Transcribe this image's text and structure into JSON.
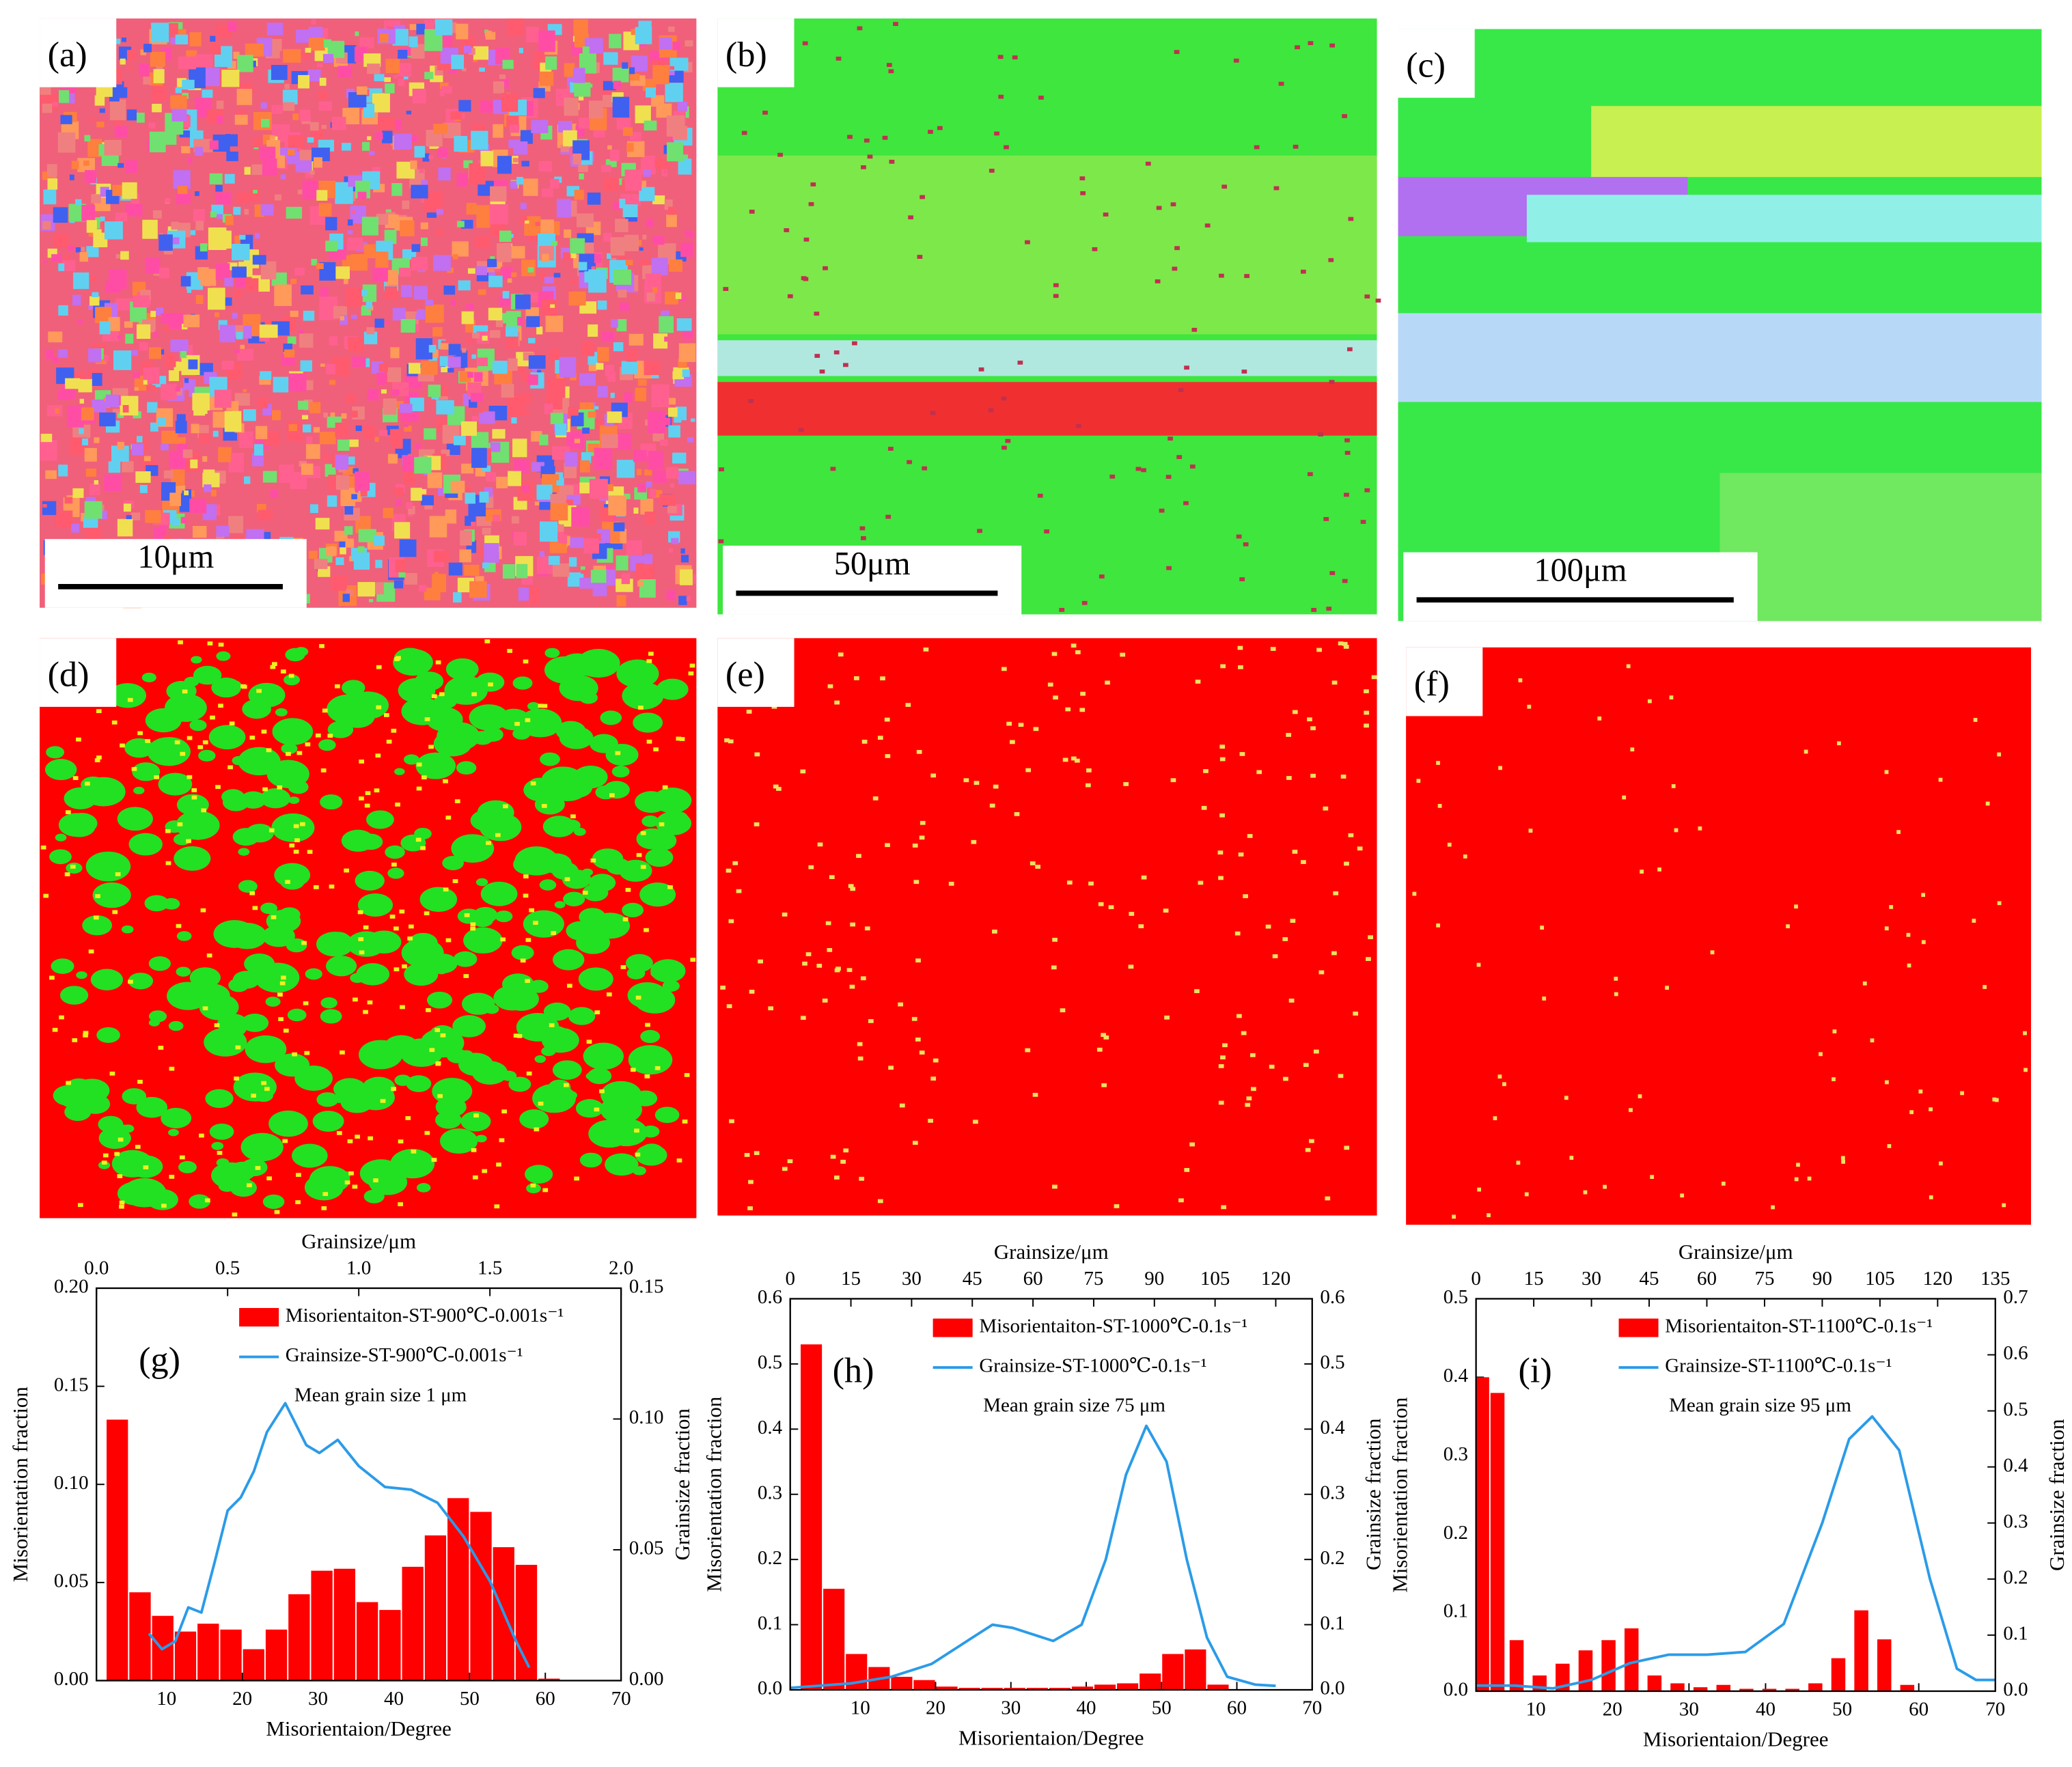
{
  "panels": [
    {
      "label": "(a)",
      "scale_bar": "10μm"
    },
    {
      "label": "(b)",
      "scale_bar": "50μm"
    },
    {
      "label": "(c)",
      "scale_bar": "100μm"
    },
    {
      "label": "(d)"
    },
    {
      "label": "(e)"
    },
    {
      "label": "(f)"
    }
  ],
  "chart_data": [
    {
      "type": "bar",
      "panel_label": "(g)",
      "xlabel": "Misorientaion/Degree",
      "ylabel": "Misorientation fraction",
      "x2label": "Grainsize/μm",
      "y2label": "Grainsize fraction",
      "annotation": "Mean grain size 1 μm",
      "x": [
        3.5,
        6.5,
        9.5,
        12.5,
        15.5,
        18.5,
        21.5,
        24.5,
        27.5,
        30.5,
        33.5,
        36.5,
        39.5,
        42.5,
        45.5,
        48.5,
        51.5,
        54.5,
        57.5,
        60.5
      ],
      "series": [
        {
          "name": "Misorientaiton-ST-900℃-0.001s⁻¹",
          "color": "#ff0000",
          "values": [
            0.133,
            0.045,
            0.033,
            0.025,
            0.029,
            0.026,
            0.016,
            0.026,
            0.044,
            0.056,
            0.057,
            0.04,
            0.036,
            0.058,
            0.074,
            0.093,
            0.086,
            0.068,
            0.059,
            0.001
          ]
        },
        {
          "name": "Grainsize-ST-900℃-0.001s⁻¹",
          "color": "#2b9be8",
          "axis": "y2",
          "x": [
            0.2,
            0.25,
            0.3,
            0.35,
            0.4,
            0.45,
            0.5,
            0.55,
            0.6,
            0.65,
            0.72,
            0.8,
            0.85,
            0.92,
            1.0,
            1.1,
            1.2,
            1.3,
            1.4,
            1.5,
            1.6,
            1.65
          ],
          "values": [
            0.018,
            0.012,
            0.015,
            0.028,
            0.026,
            0.045,
            0.065,
            0.07,
            0.08,
            0.095,
            0.106,
            0.09,
            0.087,
            0.092,
            0.082,
            0.074,
            0.073,
            0.068,
            0.055,
            0.038,
            0.015,
            0.005
          ]
        }
      ],
      "xlim": [
        0.75,
        70
      ],
      "xticks": [
        10,
        20,
        30,
        40,
        50,
        60,
        70
      ],
      "x2lim": [
        0,
        2
      ],
      "x2ticks": [
        {
          "value": 0,
          "label": "0.0"
        },
        {
          "value": 0.5,
          "label": "0.5"
        },
        {
          "value": 1,
          "label": "1.0"
        },
        {
          "value": 1.5,
          "label": "1.5"
        },
        {
          "value": 2,
          "label": "2.0"
        }
      ],
      "ylim": [
        0,
        0.2
      ],
      "yticks": [
        {
          "value": 0,
          "label": "0.00"
        },
        {
          "value": 0.05,
          "label": "0.05"
        },
        {
          "value": 0.1,
          "label": "0.10"
        },
        {
          "value": 0.15,
          "label": "0.15"
        },
        {
          "value": 0.2,
          "label": "0.20"
        }
      ],
      "y2lim": [
        0,
        0.15
      ],
      "y2ticks": [
        {
          "value": 0,
          "label": "0.00"
        },
        {
          "value": 0.05,
          "label": "0.05"
        },
        {
          "value": 0.1,
          "label": "0.10"
        },
        {
          "value": 0.15,
          "label": "0.15"
        }
      ]
    },
    {
      "type": "bar",
      "panel_label": "(h)",
      "xlabel": "Misorientaion/Degree",
      "ylabel": "Misorientation fraction",
      "x2label": "Grainsize/μm",
      "y2label": "Grainsize fraction",
      "annotation": "Mean grain size 75 μm",
      "x": [
        3.5,
        6.5,
        9.5,
        12.5,
        15.5,
        18.5,
        21.5,
        24.5,
        27.5,
        30.5,
        33.5,
        36.5,
        39.5,
        42.5,
        45.5,
        48.5,
        51.5,
        54.5,
        57.5
      ],
      "series": [
        {
          "name": "Misorientaiton-ST-1000℃-0.1s⁻¹",
          "color": "#ff0000",
          "values": [
            0.53,
            0.155,
            0.055,
            0.035,
            0.02,
            0.015,
            0.005,
            0.003,
            0.003,
            0.003,
            0.003,
            0.003,
            0.005,
            0.008,
            0.01,
            0.025,
            0.055,
            0.062,
            0.008
          ]
        },
        {
          "name": "Grainsize-ST-1000℃-0.1s⁻¹",
          "color": "#2b9be8",
          "axis": "y2",
          "x": [
            0,
            15,
            25,
            35,
            45,
            50,
            55,
            65,
            72,
            78,
            83,
            88,
            93,
            98,
            103,
            108,
            115,
            120
          ],
          "values": [
            0.003,
            0.01,
            0.02,
            0.04,
            0.08,
            0.1,
            0.095,
            0.075,
            0.1,
            0.2,
            0.33,
            0.405,
            0.35,
            0.2,
            0.08,
            0.02,
            0.008,
            0.006
          ]
        }
      ],
      "xlim": [
        0.7,
        70
      ],
      "xticks": [
        10,
        20,
        30,
        40,
        50,
        60,
        70
      ],
      "x2lim": [
        0,
        129
      ],
      "x2ticks": [
        0,
        15,
        30,
        45,
        60,
        75,
        90,
        105,
        120
      ],
      "ylim": [
        0,
        0.6
      ],
      "yticks": [
        {
          "value": 0,
          "label": "0.0"
        },
        0.1,
        0.2,
        0.3,
        0.4,
        0.5,
        0.6
      ],
      "y2lim": [
        0,
        0.6
      ],
      "y2ticks": [
        {
          "value": 0,
          "label": "0.0"
        },
        0.1,
        0.2,
        0.3,
        0.4,
        0.5,
        0.6
      ]
    },
    {
      "type": "bar",
      "panel_label": "(i)",
      "xlabel": "Misorientaion/Degree",
      "ylabel": "Misorientation fraction",
      "x2label": "Grainsize/μm",
      "y2label": "Grainsize fraction",
      "annotation": "Mean grain size 95 μm",
      "x": [
        3,
        5,
        7.5,
        10.5,
        13.5,
        16.5,
        19.5,
        22.5,
        25.5,
        28.5,
        31.5,
        34.5,
        37.5,
        40.5,
        43.5,
        46.5,
        49.5,
        52.5,
        55.5,
        58.5
      ],
      "series": [
        {
          "name": "Misorientaiton-ST-1100℃-0.1s⁻¹",
          "color": "#ff0000",
          "values": [
            0.4,
            0.38,
            0.065,
            0.02,
            0.035,
            0.052,
            0.065,
            0.08,
            0.02,
            0.01,
            0.005,
            0.008,
            0.003,
            0.003,
            0.003,
            0.01,
            0.042,
            0.103,
            0.066,
            0.008
          ]
        },
        {
          "name": "Grainsize-ST-1100℃-0.1s⁻¹",
          "color": "#2b9be8",
          "axis": "y2",
          "x": [
            0,
            10,
            20,
            30,
            40,
            50,
            60,
            70,
            80,
            90,
            97,
            103,
            110,
            118,
            125,
            130,
            135
          ],
          "values": [
            0.01,
            0.01,
            0.005,
            0.02,
            0.05,
            0.065,
            0.065,
            0.07,
            0.12,
            0.3,
            0.45,
            0.49,
            0.43,
            0.2,
            0.04,
            0.02,
            0.02
          ]
        }
      ],
      "xlim": [
        2.2,
        70
      ],
      "xticks": [
        10,
        20,
        30,
        40,
        50,
        60,
        70
      ],
      "x2lim": [
        0,
        135
      ],
      "x2ticks": [
        0,
        15,
        30,
        45,
        60,
        75,
        90,
        105,
        120,
        135
      ],
      "ylim": [
        0,
        0.5
      ],
      "yticks": [
        {
          "value": 0,
          "label": "0.0"
        },
        0.1,
        0.2,
        0.3,
        0.4,
        0.5
      ],
      "y2lim": [
        0,
        0.7
      ],
      "y2ticks": [
        {
          "value": 0,
          "label": "0.0"
        },
        0.1,
        0.2,
        0.3,
        0.4,
        0.5,
        0.6,
        0.7
      ]
    }
  ]
}
